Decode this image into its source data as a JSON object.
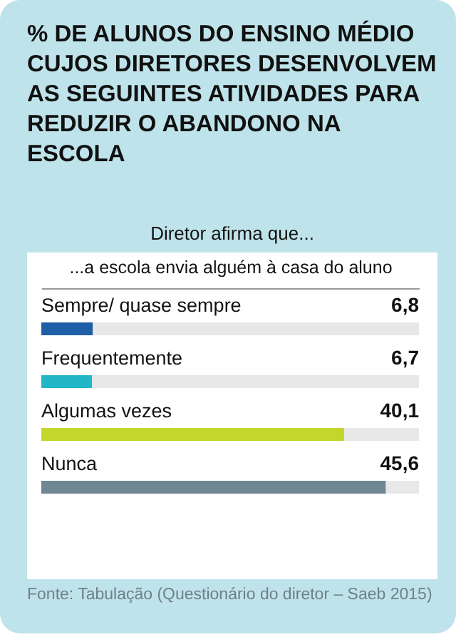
{
  "chart_data": {
    "type": "bar",
    "orientation": "horizontal",
    "title": "% DE ALUNOS DO ENSINO MÉDIO CUJOS DIRETORES DESENVOLVEM AS SEGUINTES ATIVIDADES PARA REDUZIR O ABANDONO NA ESCOLA",
    "subtitle": "Diretor afirma que...",
    "xlabel": "...a escola envia alguém à casa do aluno",
    "categories": [
      "Sempre/ quase sempre",
      "Frequentemente",
      "Algumas vezes",
      "Nunca"
    ],
    "values": [
      6.8,
      6.7,
      40.1,
      45.6
    ],
    "colors": [
      "#1f5fa8",
      "#22b6c8",
      "#c4d62c",
      "#6e8792"
    ],
    "value_labels": [
      "6,8",
      "6,7",
      "40,1",
      "45,6"
    ],
    "legend": false,
    "annotations": [
      "Fonte: Tabulação (Questionário do diretor – Saeb 2015)"
    ]
  }
}
